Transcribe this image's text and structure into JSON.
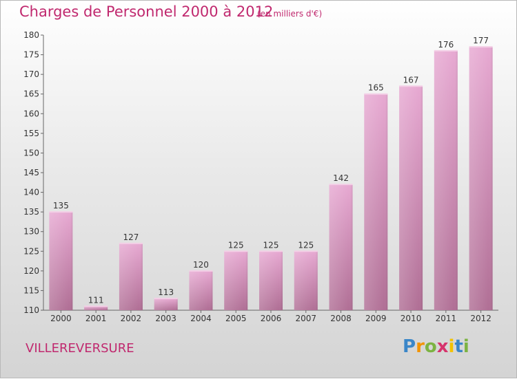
{
  "title": "Charges de Personnel 2000 à 2012",
  "subtitle": "(en milliers d'€)",
  "commune": "VILLEREVERSURE",
  "logo": {
    "letters": [
      "P",
      "r",
      "o",
      "x",
      "i",
      "t",
      "i"
    ],
    "colors": [
      "#3a86c8",
      "#f29400",
      "#7cb342",
      "#d6336c",
      "#f2c200",
      "#3a86c8",
      "#7cb342"
    ]
  },
  "colors": {
    "title": "#c0286e",
    "bar_top": "#e7a9d2",
    "bar_bottom": "#b06f95"
  },
  "chart_data": {
    "type": "bar",
    "categories": [
      "2000",
      "2001",
      "2002",
      "2003",
      "2004",
      "2005",
      "2006",
      "2007",
      "2008",
      "2009",
      "2010",
      "2011",
      "2012"
    ],
    "values": [
      135,
      111,
      127,
      113,
      120,
      125,
      125,
      125,
      142,
      165,
      167,
      176,
      177
    ],
    "ylim": [
      110,
      180
    ],
    "yticks": [
      110,
      115,
      120,
      125,
      130,
      135,
      140,
      145,
      150,
      155,
      160,
      165,
      170,
      175,
      180
    ],
    "grid": false,
    "legend": "none"
  }
}
